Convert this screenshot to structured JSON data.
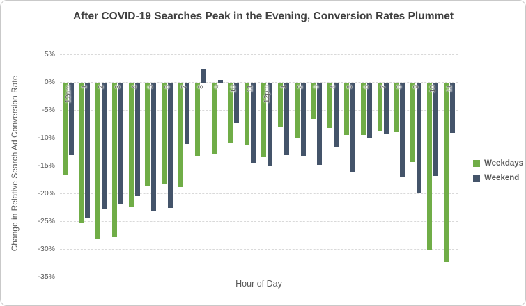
{
  "chart_data": {
    "type": "bar",
    "title": "After COVID-19 Searches Peak in the Evening, Conversion Rates Plummet",
    "xlabel": "Hour of Day",
    "ylabel": "Change in Relative Search Ad Conversion Rate",
    "ylim": [
      -35,
      5
    ],
    "ytick_step": 5,
    "ytick_labels": [
      "5%",
      "0%",
      "-5%",
      "-10%",
      "-15%",
      "-20%",
      "-25%",
      "-30%",
      "-35%"
    ],
    "grid": "dashed horizontal",
    "legend_position": "right",
    "categories": [
      "12am",
      "1",
      "2",
      "3",
      "4",
      "5",
      "6",
      "7",
      "8",
      "9",
      "10",
      "11",
      "12pm",
      "1",
      "2",
      "3",
      "4",
      "5",
      "6",
      "7",
      "8",
      "9",
      "10",
      "11"
    ],
    "series": [
      {
        "name": "Weekdays",
        "color": "#70AD47",
        "values": [
          -16.5,
          -25.3,
          -28.0,
          -27.7,
          -22.3,
          -18.5,
          -18.3,
          -18.7,
          -13.1,
          -12.7,
          -10.8,
          -11.3,
          -13.4,
          -8.0,
          -10.0,
          -6.5,
          -8.1,
          -9.4,
          -9.4,
          -8.7,
          -8.9,
          -14.2,
          -30.0,
          -32.3
        ]
      },
      {
        "name": "Weekend",
        "color": "#44546A",
        "values": [
          -13.0,
          -24.3,
          -22.8,
          -21.8,
          -20.4,
          -23.0,
          -22.5,
          -11.0,
          2.5,
          0.5,
          -7.3,
          -14.5,
          -15.0,
          -13.0,
          -13.3,
          -14.8,
          -11.6,
          -16.0,
          -10.0,
          -9.2,
          -17.0,
          -19.8,
          -16.8,
          -9.0
        ]
      }
    ]
  }
}
